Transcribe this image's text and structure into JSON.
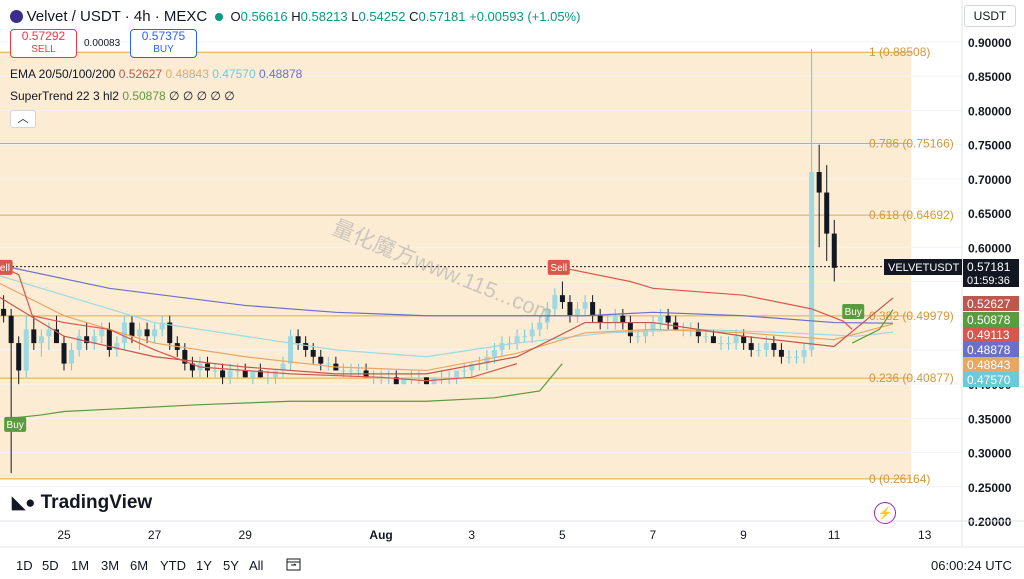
{
  "header": {
    "symbol": "Velvet / USDT · 4h · MEXC",
    "open_label": "O",
    "open": "0.56616",
    "high_label": "H",
    "high": "0.58213",
    "low_label": "L",
    "low": "0.54252",
    "close_label": "C",
    "close": "0.57181",
    "change": "+0.00593 (+1.05%)"
  },
  "trade": {
    "sell_price": "0.57292",
    "sell_label": "SELL",
    "spread": "0.00083",
    "buy_price": "0.57375",
    "buy_label": "BUY"
  },
  "indicators": {
    "ema_label": "EMA 20/50/100/200",
    "ema20": "0.52627",
    "ema50": "0.48843",
    "ema100": "0.47570",
    "ema200": "0.48878",
    "st_label": "SuperTrend 22 3 hl2",
    "st_value": "0.50878",
    "st_placeholders": "∅ ∅ ∅ ∅ ∅"
  },
  "currency_button": "USDT",
  "logo_text": "TradingView",
  "watermark": "量化魔方www.115...com",
  "timeframes": [
    "1D",
    "5D",
    "1M",
    "3M",
    "6M",
    "YTD",
    "1Y",
    "5Y",
    "All"
  ],
  "clock": "06:00:24 UTC",
  "colors": {
    "up": "#089981",
    "down": "#131722",
    "fib_fill": "#fbe5c4",
    "ema20": "#c0574f",
    "ema50": "#e8a663",
    "ema100": "#9ed8e0",
    "ema200": "#6a6fc9",
    "st_up": "#5b9a3e",
    "st_down": "#d9564c"
  },
  "chart_data": {
    "type": "candlestick",
    "title": "Velvet / USDT · 4h · MEXC",
    "y_ticks": [
      0.2,
      0.25,
      0.3,
      0.35,
      0.4,
      0.45,
      0.5,
      0.55,
      0.6,
      0.65,
      0.7,
      0.75,
      0.8,
      0.85,
      0.9
    ],
    "y_tick_labels": [
      "0.20000",
      "0.25000",
      "0.30000",
      "0.35000",
      "0.40000",
      "0.45000",
      "0.50000",
      "0.55000",
      "0.60000",
      "0.65000",
      "0.70000",
      "0.75000",
      "0.80000",
      "0.85000",
      "0.90000"
    ],
    "x_tick_labels": [
      "25",
      "27",
      "29",
      "Aug",
      "3",
      "5",
      "7",
      "9",
      "11",
      "13"
    ],
    "x_tick_days": [
      25,
      27,
      29,
      32,
      34,
      36,
      38,
      40,
      42,
      44
    ],
    "x_start_day": 23.5,
    "fib_levels": [
      {
        "label": "1 (0.88508)",
        "value": 0.88508
      },
      {
        "label": "0.786 (0.75166)",
        "value": 0.75166
      },
      {
        "label": "0.618 (0.64692)",
        "value": 0.64692
      },
      {
        "label": "0.382 (0.49979)",
        "value": 0.49979
      },
      {
        "label": "0.236 (0.40877)",
        "value": 0.40877
      },
      {
        "label": "0 (0.26164)",
        "value": 0.26164
      }
    ],
    "price_scale_tags": [
      {
        "label": "VELVETUSDT",
        "value": 0.57181,
        "time": "01:59:36",
        "color": "#131722"
      },
      {
        "label": "0.52627",
        "value": 0.52627,
        "color": "#c0574f"
      },
      {
        "label": "0.50878",
        "value": 0.50878,
        "color": "#5b9a3e"
      },
      {
        "label": "0.49113",
        "value": 0.49113,
        "color": "#d9564c"
      },
      {
        "label": "0.48878",
        "value": 0.48878,
        "color": "#6a6fc9"
      },
      {
        "label": "0.48843",
        "value": 0.48843,
        "color": "#e8a663"
      },
      {
        "label": "0.47570",
        "value": 0.4757,
        "color": "#6cc9d9"
      }
    ],
    "signals": [
      {
        "label": "Sell",
        "day": 23.6,
        "value": 0.57
      },
      {
        "label": "Buy",
        "day": 23.9,
        "value": 0.355
      },
      {
        "label": "Sell",
        "day": 35.9,
        "value": 0.57
      },
      {
        "label": "Buy",
        "day": 42.4,
        "value": 0.52
      }
    ],
    "candles_x_start_day": 23.5,
    "candles_days_per_bar": 0.1667,
    "candles_ohlc": [
      [
        0.51,
        0.52,
        0.5,
        0.51
      ],
      [
        0.51,
        0.53,
        0.49,
        0.5
      ],
      [
        0.5,
        0.51,
        0.27,
        0.46
      ],
      [
        0.46,
        0.47,
        0.4,
        0.42
      ],
      [
        0.42,
        0.5,
        0.41,
        0.48
      ],
      [
        0.48,
        0.5,
        0.45,
        0.46
      ],
      [
        0.46,
        0.48,
        0.44,
        0.47
      ],
      [
        0.47,
        0.49,
        0.45,
        0.48
      ],
      [
        0.48,
        0.5,
        0.46,
        0.46
      ],
      [
        0.46,
        0.47,
        0.42,
        0.43
      ],
      [
        0.43,
        0.46,
        0.42,
        0.45
      ],
      [
        0.45,
        0.48,
        0.44,
        0.47
      ],
      [
        0.47,
        0.49,
        0.45,
        0.46
      ],
      [
        0.46,
        0.48,
        0.45,
        0.47
      ],
      [
        0.47,
        0.49,
        0.46,
        0.48
      ],
      [
        0.48,
        0.49,
        0.44,
        0.45
      ],
      [
        0.45,
        0.47,
        0.44,
        0.46
      ],
      [
        0.46,
        0.5,
        0.45,
        0.49
      ],
      [
        0.49,
        0.5,
        0.46,
        0.47
      ],
      [
        0.47,
        0.49,
        0.45,
        0.48
      ],
      [
        0.48,
        0.49,
        0.46,
        0.47
      ],
      [
        0.47,
        0.49,
        0.46,
        0.48
      ],
      [
        0.48,
        0.5,
        0.47,
        0.49
      ],
      [
        0.49,
        0.5,
        0.45,
        0.46
      ],
      [
        0.46,
        0.47,
        0.44,
        0.45
      ],
      [
        0.45,
        0.46,
        0.42,
        0.43
      ],
      [
        0.43,
        0.44,
        0.41,
        0.42
      ],
      [
        0.42,
        0.44,
        0.41,
        0.43
      ],
      [
        0.43,
        0.44,
        0.41,
        0.42
      ],
      [
        0.42,
        0.43,
        0.41,
        0.42
      ],
      [
        0.42,
        0.43,
        0.4,
        0.41
      ],
      [
        0.41,
        0.43,
        0.4,
        0.42
      ],
      [
        0.42,
        0.43,
        0.41,
        0.42
      ],
      [
        0.42,
        0.43,
        0.41,
        0.41
      ],
      [
        0.41,
        0.42,
        0.4,
        0.42
      ],
      [
        0.42,
        0.43,
        0.41,
        0.41
      ],
      [
        0.41,
        0.42,
        0.4,
        0.41
      ],
      [
        0.41,
        0.42,
        0.4,
        0.42
      ],
      [
        0.42,
        0.44,
        0.41,
        0.43
      ],
      [
        0.43,
        0.48,
        0.42,
        0.47
      ],
      [
        0.47,
        0.48,
        0.45,
        0.46
      ],
      [
        0.46,
        0.47,
        0.44,
        0.45
      ],
      [
        0.45,
        0.46,
        0.43,
        0.44
      ],
      [
        0.44,
        0.45,
        0.42,
        0.43
      ],
      [
        0.43,
        0.44,
        0.42,
        0.43
      ],
      [
        0.43,
        0.44,
        0.42,
        0.42
      ],
      [
        0.42,
        0.43,
        0.41,
        0.42
      ],
      [
        0.42,
        0.43,
        0.41,
        0.42
      ],
      [
        0.42,
        0.43,
        0.41,
        0.42
      ],
      [
        0.42,
        0.43,
        0.41,
        0.41
      ],
      [
        0.41,
        0.42,
        0.4,
        0.41
      ],
      [
        0.41,
        0.42,
        0.4,
        0.41
      ],
      [
        0.41,
        0.42,
        0.4,
        0.41
      ],
      [
        0.41,
        0.42,
        0.4,
        0.4
      ],
      [
        0.4,
        0.41,
        0.4,
        0.41
      ],
      [
        0.41,
        0.42,
        0.4,
        0.41
      ],
      [
        0.41,
        0.42,
        0.4,
        0.41
      ],
      [
        0.41,
        0.41,
        0.4,
        0.4
      ],
      [
        0.4,
        0.41,
        0.4,
        0.41
      ],
      [
        0.41,
        0.42,
        0.4,
        0.41
      ],
      [
        0.41,
        0.42,
        0.4,
        0.41
      ],
      [
        0.41,
        0.42,
        0.4,
        0.42
      ],
      [
        0.42,
        0.43,
        0.41,
        0.42
      ],
      [
        0.42,
        0.43,
        0.41,
        0.43
      ],
      [
        0.43,
        0.44,
        0.42,
        0.43
      ],
      [
        0.43,
        0.45,
        0.42,
        0.44
      ],
      [
        0.44,
        0.46,
        0.43,
        0.45
      ],
      [
        0.45,
        0.47,
        0.44,
        0.46
      ],
      [
        0.46,
        0.47,
        0.45,
        0.46
      ],
      [
        0.46,
        0.48,
        0.45,
        0.47
      ],
      [
        0.47,
        0.48,
        0.46,
        0.47
      ],
      [
        0.47,
        0.49,
        0.46,
        0.48
      ],
      [
        0.48,
        0.5,
        0.47,
        0.49
      ],
      [
        0.49,
        0.52,
        0.48,
        0.51
      ],
      [
        0.51,
        0.54,
        0.5,
        0.53
      ],
      [
        0.53,
        0.55,
        0.51,
        0.52
      ],
      [
        0.52,
        0.53,
        0.49,
        0.5
      ],
      [
        0.5,
        0.52,
        0.49,
        0.51
      ],
      [
        0.51,
        0.53,
        0.5,
        0.52
      ],
      [
        0.52,
        0.53,
        0.49,
        0.5
      ],
      [
        0.5,
        0.51,
        0.48,
        0.49
      ],
      [
        0.49,
        0.5,
        0.48,
        0.49
      ],
      [
        0.49,
        0.51,
        0.48,
        0.5
      ],
      [
        0.5,
        0.51,
        0.48,
        0.49
      ],
      [
        0.49,
        0.5,
        0.46,
        0.47
      ],
      [
        0.47,
        0.48,
        0.46,
        0.47
      ],
      [
        0.47,
        0.49,
        0.46,
        0.48
      ],
      [
        0.48,
        0.5,
        0.47,
        0.49
      ],
      [
        0.49,
        0.51,
        0.48,
        0.5
      ],
      [
        0.5,
        0.51,
        0.48,
        0.49
      ],
      [
        0.49,
        0.5,
        0.48,
        0.48
      ],
      [
        0.48,
        0.49,
        0.47,
        0.48
      ],
      [
        0.48,
        0.49,
        0.47,
        0.48
      ],
      [
        0.48,
        0.49,
        0.46,
        0.47
      ],
      [
        0.47,
        0.48,
        0.46,
        0.47
      ],
      [
        0.47,
        0.48,
        0.46,
        0.46
      ],
      [
        0.46,
        0.47,
        0.45,
        0.46
      ],
      [
        0.46,
        0.47,
        0.45,
        0.46
      ],
      [
        0.46,
        0.48,
        0.45,
        0.47
      ],
      [
        0.47,
        0.48,
        0.45,
        0.46
      ],
      [
        0.46,
        0.47,
        0.44,
        0.45
      ],
      [
        0.45,
        0.46,
        0.44,
        0.45
      ],
      [
        0.45,
        0.47,
        0.44,
        0.46
      ],
      [
        0.46,
        0.47,
        0.44,
        0.45
      ],
      [
        0.45,
        0.46,
        0.43,
        0.44
      ],
      [
        0.44,
        0.45,
        0.43,
        0.44
      ],
      [
        0.44,
        0.45,
        0.43,
        0.44
      ],
      [
        0.44,
        0.46,
        0.43,
        0.45
      ],
      [
        0.45,
        0.89,
        0.44,
        0.71
      ],
      [
        0.71,
        0.75,
        0.6,
        0.68
      ],
      [
        0.68,
        0.72,
        0.58,
        0.62
      ],
      [
        0.62,
        0.64,
        0.55,
        0.57
      ]
    ]
  }
}
